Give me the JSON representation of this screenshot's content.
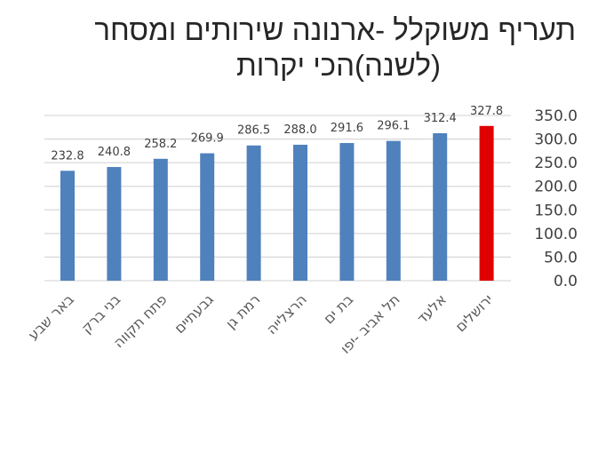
{
  "title": {
    "line1": "תעריף משוקלל -ארנונה שירותים ומסחר",
    "line2": "(לשנה)הכי יקרות"
  },
  "colors": {
    "bar": "#4f81bd",
    "highlight": "#e00000",
    "grid": "#d9d9d9"
  },
  "chart_data": {
    "type": "bar",
    "title": "תעריף משוקלל -ארנונה שירותים ומסחר (לשנה)הכי יקרות",
    "categories": [
      "באר שבע",
      "בני ברק",
      "פתח תקווה",
      "גבעתיים",
      "רמת גן",
      "הרצלייה",
      "בת ים",
      "תל אביב -יפו",
      "אלעד",
      "ירושלים"
    ],
    "values": [
      232.8,
      240.8,
      258.2,
      269.9,
      286.5,
      288.0,
      291.6,
      296.1,
      312.4,
      327.8
    ],
    "value_labels": [
      "232.8",
      "240.8",
      "258.2",
      "269.9",
      "286.5",
      "288.0",
      "291.6",
      "296.1",
      "312.4",
      "327.8"
    ],
    "highlighted_category": "ירושלים",
    "xlabel": "",
    "ylabel": "",
    "ylim": [
      0,
      350
    ],
    "yticks": [
      "0.0",
      "50.0",
      "100.0",
      "150.0",
      "200.0",
      "250.0",
      "300.0",
      "350.0"
    ],
    "ytick_values": [
      0,
      50,
      100,
      150,
      200,
      250,
      300,
      350
    ],
    "y_axis_position": "right",
    "grid": true,
    "legend": "none"
  }
}
